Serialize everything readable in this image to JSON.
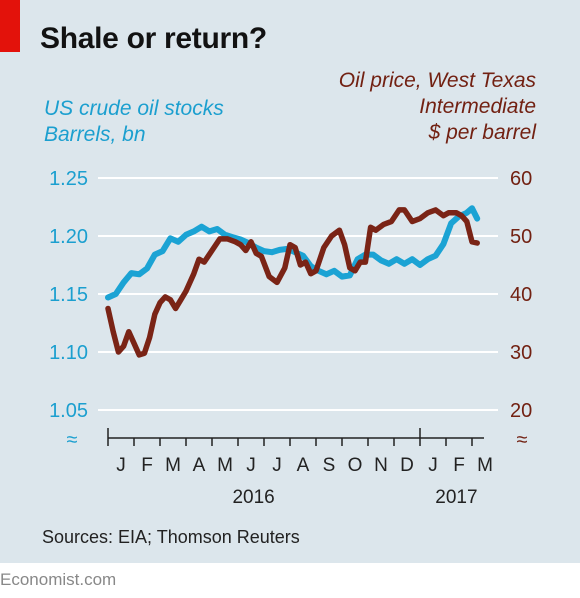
{
  "brand": "Economist.com",
  "colors": {
    "stocks": "#1ba3d4",
    "oil": "#7a2416",
    "accent_red": "#e3120b",
    "panel": "#dce6ec"
  },
  "chart_data": {
    "type": "line",
    "title": "Shale or return?",
    "source": "Sources: EIA; Thomson Reuters",
    "left_axis": {
      "label_lines": [
        "US crude oil stocks",
        "Barrels, bn"
      ],
      "ylim": [
        1.05,
        1.25
      ],
      "ticks": [
        "1.25",
        "1.20",
        "1.15",
        "1.10",
        "1.05"
      ]
    },
    "right_axis": {
      "label_lines": [
        "Oil price, West Texas",
        "Intermediate",
        "$ per barrel"
      ],
      "ylim": [
        20,
        60
      ],
      "ticks": [
        "60",
        "50",
        "40",
        "30",
        "20"
      ]
    },
    "x_axis": {
      "months": [
        "J",
        "F",
        "M",
        "A",
        "M",
        "J",
        "J",
        "A",
        "S",
        "O",
        "N",
        "D",
        "J",
        "F",
        "M"
      ],
      "years": [
        "2016",
        "2017"
      ],
      "range_months": [
        0,
        15
      ]
    },
    "grid": true,
    "series": [
      {
        "name": "US crude oil stocks",
        "axis": "left",
        "points": [
          [
            0,
            1.147
          ],
          [
            0.3,
            1.15
          ],
          [
            0.6,
            1.16
          ],
          [
            0.9,
            1.168
          ],
          [
            1.2,
            1.167
          ],
          [
            1.5,
            1.172
          ],
          [
            1.8,
            1.184
          ],
          [
            2.1,
            1.187
          ],
          [
            2.4,
            1.198
          ],
          [
            2.7,
            1.195
          ],
          [
            3.0,
            1.201
          ],
          [
            3.3,
            1.204
          ],
          [
            3.6,
            1.208
          ],
          [
            3.9,
            1.204
          ],
          [
            4.2,
            1.206
          ],
          [
            4.5,
            1.201
          ],
          [
            4.8,
            1.199
          ],
          [
            5.1,
            1.197
          ],
          [
            5.4,
            1.194
          ],
          [
            5.7,
            1.19
          ],
          [
            6.0,
            1.187
          ],
          [
            6.3,
            1.186
          ],
          [
            6.6,
            1.188
          ],
          [
            6.9,
            1.189
          ],
          [
            7.2,
            1.186
          ],
          [
            7.5,
            1.183
          ],
          [
            7.8,
            1.174
          ],
          [
            8.1,
            1.17
          ],
          [
            8.4,
            1.167
          ],
          [
            8.7,
            1.17
          ],
          [
            9.0,
            1.165
          ],
          [
            9.3,
            1.166
          ],
          [
            9.6,
            1.18
          ],
          [
            9.9,
            1.184
          ],
          [
            10.2,
            1.184
          ],
          [
            10.5,
            1.179
          ],
          [
            10.8,
            1.176
          ],
          [
            11.1,
            1.18
          ],
          [
            11.4,
            1.176
          ],
          [
            11.7,
            1.18
          ],
          [
            12.0,
            1.175
          ],
          [
            12.3,
            1.18
          ],
          [
            12.6,
            1.183
          ],
          [
            12.9,
            1.193
          ],
          [
            13.2,
            1.211
          ],
          [
            13.5,
            1.217
          ],
          [
            13.8,
            1.22
          ],
          [
            14.0,
            1.224
          ],
          [
            14.2,
            1.215
          ]
        ]
      },
      {
        "name": "Oil price, West Texas Intermediate",
        "axis": "right",
        "points": [
          [
            0,
            37.5
          ],
          [
            0.2,
            33.5
          ],
          [
            0.4,
            30.0
          ],
          [
            0.6,
            31.0
          ],
          [
            0.8,
            33.5
          ],
          [
            1.0,
            31.5
          ],
          [
            1.2,
            29.5
          ],
          [
            1.4,
            29.8
          ],
          [
            1.6,
            32.5
          ],
          [
            1.8,
            36.5
          ],
          [
            2.0,
            38.5
          ],
          [
            2.2,
            39.5
          ],
          [
            2.4,
            39.0
          ],
          [
            2.6,
            37.5
          ],
          [
            2.8,
            39.0
          ],
          [
            3.0,
            40.5
          ],
          [
            3.3,
            43.5
          ],
          [
            3.5,
            46.0
          ],
          [
            3.7,
            45.5
          ],
          [
            4.0,
            47.5
          ],
          [
            4.3,
            49.5
          ],
          [
            4.6,
            49.5
          ],
          [
            4.9,
            49.0
          ],
          [
            5.1,
            48.5
          ],
          [
            5.3,
            47.5
          ],
          [
            5.5,
            49.0
          ],
          [
            5.7,
            47.0
          ],
          [
            5.9,
            46.5
          ],
          [
            6.2,
            43.0
          ],
          [
            6.5,
            42.0
          ],
          [
            6.8,
            44.5
          ],
          [
            7.0,
            48.5
          ],
          [
            7.2,
            48.0
          ],
          [
            7.4,
            45.0
          ],
          [
            7.6,
            45.5
          ],
          [
            7.8,
            43.5
          ],
          [
            8.0,
            44.0
          ],
          [
            8.3,
            48.0
          ],
          [
            8.6,
            50.0
          ],
          [
            8.9,
            51.0
          ],
          [
            9.1,
            48.5
          ],
          [
            9.3,
            44.5
          ],
          [
            9.5,
            44.0
          ],
          [
            9.7,
            45.5
          ],
          [
            9.9,
            45.5
          ],
          [
            10.1,
            51.5
          ],
          [
            10.3,
            51.0
          ],
          [
            10.6,
            52.0
          ],
          [
            10.9,
            52.5
          ],
          [
            11.2,
            54.5
          ],
          [
            11.4,
            54.5
          ],
          [
            11.7,
            52.5
          ],
          [
            12.0,
            53.0
          ],
          [
            12.3,
            54.0
          ],
          [
            12.6,
            54.5
          ],
          [
            12.9,
            53.5
          ],
          [
            13.1,
            54.0
          ],
          [
            13.4,
            54.0
          ],
          [
            13.6,
            53.5
          ],
          [
            13.8,
            52.5
          ],
          [
            14.0,
            49.0
          ],
          [
            14.2,
            48.8
          ]
        ]
      }
    ]
  }
}
